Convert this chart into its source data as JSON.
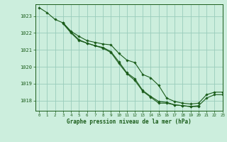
{
  "title": "Graphe pression niveau de la mer (hPa)",
  "bg_color": "#cceedd",
  "grid_color": "#99ccbb",
  "line_color": "#1a5c1a",
  "xlim": [
    -0.5,
    23
  ],
  "ylim": [
    1017.4,
    1023.7
  ],
  "yticks": [
    1018,
    1019,
    1020,
    1021,
    1022,
    1023
  ],
  "xticks": [
    0,
    1,
    2,
    3,
    4,
    5,
    6,
    7,
    8,
    9,
    10,
    11,
    12,
    13,
    14,
    15,
    16,
    17,
    18,
    19,
    20,
    21,
    22,
    23
  ],
  "series": [
    {
      "x": [
        0,
        1,
        2,
        3,
        4,
        5,
        6,
        7,
        8,
        9,
        10,
        11,
        12,
        13,
        14,
        15,
        16,
        17,
        18,
        19,
        20,
        21,
        22,
        23
      ],
      "y": [
        1023.5,
        1023.2,
        1022.8,
        1022.6,
        1022.1,
        1021.8,
        1021.55,
        1021.45,
        1021.35,
        1021.3,
        1020.8,
        1020.4,
        1020.25,
        1019.55,
        1019.35,
        1018.9,
        1018.15,
        1017.95,
        1017.85,
        1017.8,
        1017.85,
        1018.35,
        1018.5,
        1018.5
      ]
    },
    {
      "x": [
        3,
        4,
        5,
        6,
        7,
        8,
        9,
        10,
        11,
        12,
        13,
        14,
        15,
        16,
        17,
        18,
        19,
        20,
        21,
        22,
        23
      ],
      "y": [
        1022.55,
        1022.0,
        1021.55,
        1021.4,
        1021.25,
        1021.1,
        1020.85,
        1020.2,
        1019.6,
        1019.2,
        1018.55,
        1018.2,
        1017.85,
        1017.85,
        1017.75,
        1017.7,
        1017.65,
        1017.7,
        1018.15,
        1018.35,
        1018.35
      ]
    },
    {
      "x": [
        3,
        4,
        5,
        6,
        7,
        8,
        9,
        10,
        11,
        12,
        13,
        14,
        15,
        16,
        17,
        18,
        19,
        20
      ],
      "y": [
        1022.6,
        1022.05,
        1021.6,
        1021.4,
        1021.25,
        1021.15,
        1020.9,
        1020.3,
        1019.65,
        1019.3,
        1018.6,
        1018.25,
        1017.95,
        1017.9,
        1017.75,
        1017.7,
        1017.65,
        1017.65
      ]
    }
  ]
}
